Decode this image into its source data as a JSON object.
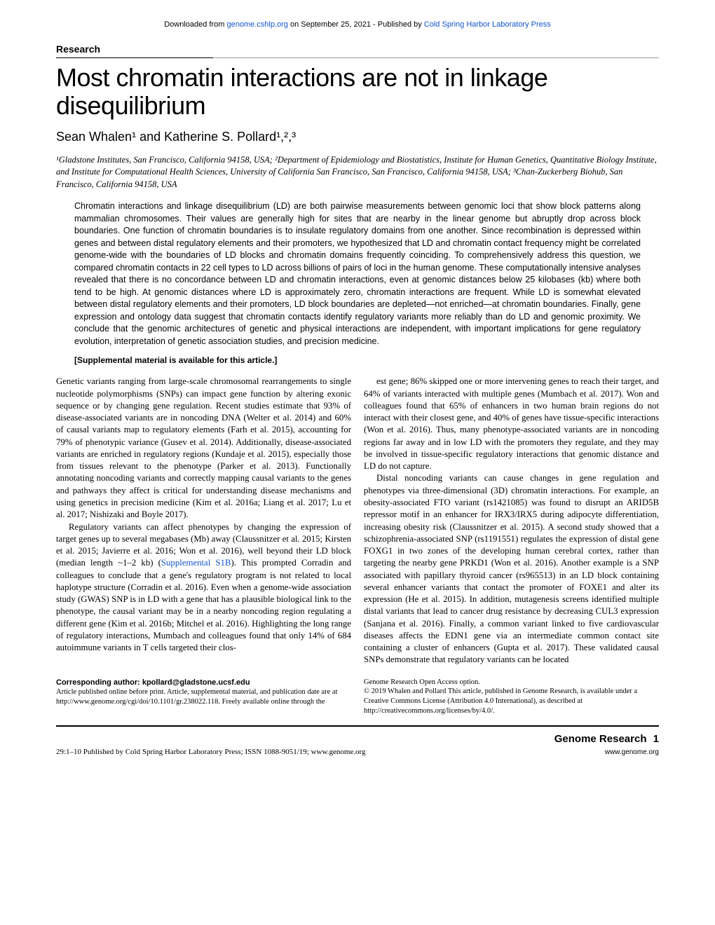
{
  "downloadBar": {
    "prefix": "Downloaded from ",
    "link1": "genome.cshlp.org",
    "middle": " on September 25, 2021 - Published by ",
    "link2": "Cold Spring Harbor Laboratory Press"
  },
  "sectionLabel": "Research",
  "title": "Most chromatin interactions are not in linkage disequilibrium",
  "authors": "Sean Whalen¹ and Katherine S. Pollard¹,²,³",
  "affiliations": "¹Gladstone Institutes, San Francisco, California 94158, USA; ²Department of Epidemiology and Biostatistics, Institute for Human Genetics, Quantitative Biology Institute, and Institute for Computational Health Sciences, University of California San Francisco, San Francisco, California 94158, USA; ³Chan-Zuckerberg Biohub, San Francisco, California 94158, USA",
  "abstract": "Chromatin interactions and linkage disequilibrium (LD) are both pairwise measurements between genomic loci that show block patterns along mammalian chromosomes. Their values are generally high for sites that are nearby in the linear genome but abruptly drop across block boundaries. One function of chromatin boundaries is to insulate regulatory domains from one another. Since recombination is depressed within genes and between distal regulatory elements and their promoters, we hypothesized that LD and chromatin contact frequency might be correlated genome-wide with the boundaries of LD blocks and chromatin domains frequently coinciding. To comprehensively address this question, we compared chromatin contacts in 22 cell types to LD across billions of pairs of loci in the human genome. These computationally intensive analyses revealed that there is no concordance between LD and chromatin interactions, even at genomic distances below 25 kilobases (kb) where both tend to be high. At genomic distances where LD is approximately zero, chromatin interactions are frequent. While LD is somewhat elevated between distal regulatory elements and their promoters, LD block boundaries are depleted—not enriched—at chromatin boundaries. Finally, gene expression and ontology data suggest that chromatin contacts identify regulatory variants more reliably than do LD and genomic proximity. We conclude that the genomic architectures of genetic and physical interactions are independent, with important implications for gene regulatory evolution, interpretation of genetic association studies, and precision medicine.",
  "supplemental": "[Supplemental material is available for this article.]",
  "body": {
    "p1a": "Genetic variants ranging from large-scale chromosomal rearrangements to single nucleotide polymorphisms (SNPs) can impact gene function by altering exonic sequence or by changing gene regulation. Recent studies estimate that 93% of disease-associated variants are in noncoding DNA (Welter et al. 2014) and 60% of causal variants map to regulatory elements (Farh et al. 2015), accounting for 79% of phenotypic variance (Gusev et al. 2014). Additionally, disease-associated variants are enriched in regulatory regions (Kundaje et al. 2015), especially those from tissues relevant to the phenotype (Parker et al. 2013). Functionally annotating noncoding variants and correctly mapping causal variants to the genes and pathways they affect is critical for understanding disease mechanisms and using genetics in precision medicine (Kim et al. 2016a; Liang et al. 2017; Lu et al. 2017; Nishizaki and Boyle 2017).",
    "p2a": "Regulatory variants can affect phenotypes by changing the expression of target genes up to several megabases (Mb) away (Claussnitzer et al. 2015; Kirsten et al. 2015; Javierre et al. 2016; Won et al. 2016), well beyond their LD block (median length ~1–2 kb) (",
    "p2link": "Supplemental S1B",
    "p2b": "). This prompted Corradin and colleagues to conclude that a gene's regulatory program is not related to local haplotype structure (Corradin et al. 2016). Even when a genome-wide association study (GWAS) SNP is in LD with a gene that has a plausible biological link to the phenotype, the causal variant may be in a nearby noncoding region regulating a different gene (Kim et al. 2016b; Mitchel et al. 2016). Highlighting the long range of regulatory interactions, Mumbach and colleagues found that only 14% of 684 autoimmune variants in T cells targeted their clos-",
    "p3": "est gene; 86% skipped one or more intervening genes to reach their target, and 64% of variants interacted with multiple genes (Mumbach et al. 2017). Won and colleagues found that 65% of enhancers in two human brain regions do not interact with their closest gene, and 40% of genes have tissue-specific interactions (Won et al. 2016). Thus, many phenotype-associated variants are in noncoding regions far away and in low LD with the promoters they regulate, and they may be involved in tissue-specific regulatory interactions that genomic distance and LD do not capture.",
    "p4": "Distal noncoding variants can cause changes in gene regulation and phenotypes via three-dimensional (3D) chromatin interactions. For example, an obesity-associated FTO variant (rs1421085) was found to disrupt an ARID5B repressor motif in an enhancer for IRX3/IRX5 during adipocyte differentiation, increasing obesity risk (Claussnitzer et al. 2015). A second study showed that a schizophrenia-associated SNP (rs1191551) regulates the expression of distal gene FOXG1 in two zones of the developing human cerebral cortex, rather than targeting the nearby gene PRKD1 (Won et al. 2016). Another example is a SNP associated with papillary thyroid cancer (rs965513) in an LD block containing several enhancer variants that contact the promoter of FOXE1 and alter its expression (He et al. 2015). In addition, mutagenesis screens identified multiple distal variants that lead to cancer drug resistance by decreasing CUL3 expression (Sanjana et al. 2016). Finally, a common variant linked to five cardiovascular diseases affects the EDN1 gene via an intermediate common contact site containing a cluster of enhancers (Gupta et al. 2017). These validated causal SNPs demonstrate that regulatory variants can be located"
  },
  "footer": {
    "corresponding": "Corresponding author: kpollard@gladstone.ucsf.edu",
    "left": "Article published online before print. Article, supplemental material, and publication date are at http://www.genome.org/cgi/doi/10.1101/gr.238022.118. Freely available online through the Genome Research Open Access option.",
    "right": "© 2019 Whalen and Pollard    This article, published in Genome Research, is available under a Creative Commons License (Attribution 4.0 International), as described at http://creativecommons.org/licenses/by/4.0/."
  },
  "pageFooter": {
    "left": "29:1–10 Published by Cold Spring Harbor Laboratory Press; ISSN 1088-9051/19; www.genome.org",
    "journalName": "Genome Research",
    "journalUrl": "www.genome.org",
    "pageNum": "1"
  }
}
